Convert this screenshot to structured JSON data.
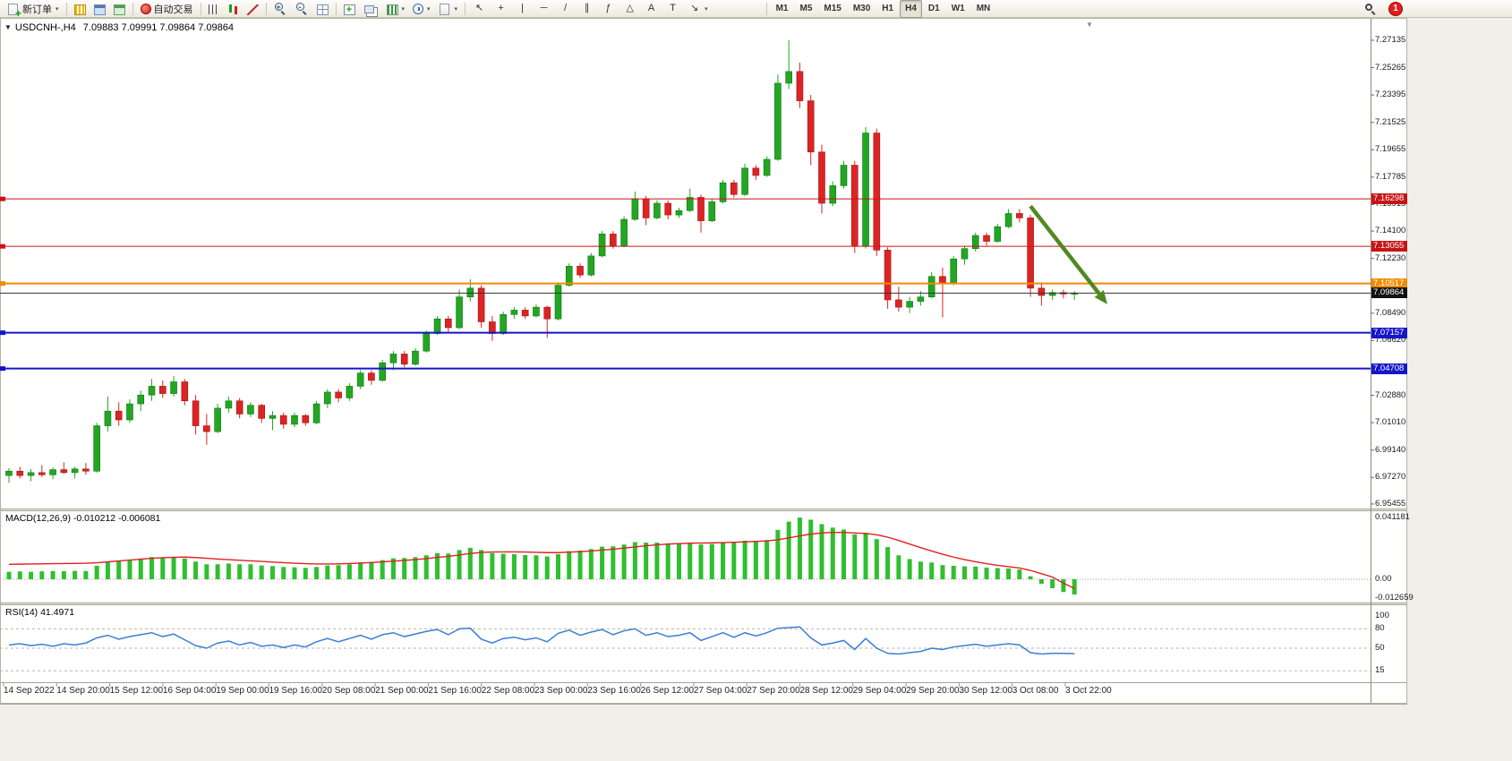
{
  "window": {
    "notification_count": "1"
  },
  "toolbar": {
    "groups": [
      {
        "items": [
          {
            "name": "new-order-button",
            "icon": "neworder",
            "label": "新订单",
            "caret": true
          }
        ]
      },
      {
        "items": [
          {
            "name": "market-watch-button",
            "icon": "marketwatch"
          },
          {
            "name": "data-window-button",
            "icon": "datawindow"
          },
          {
            "name": "navigator-button",
            "icon": "navigator"
          }
        ]
      },
      {
        "items": [
          {
            "name": "auto-trading-button",
            "icon": "autotrade",
            "label": "自动交易"
          }
        ]
      },
      {
        "items": [
          {
            "name": "bar-chart-button",
            "icon": "bars"
          },
          {
            "name": "candlestick-chart-button",
            "icon": "candles"
          },
          {
            "name": "line-chart-button",
            "icon": "linechart"
          }
        ]
      },
      {
        "items": [
          {
            "name": "zoom-in-button",
            "icon": "zoomin"
          },
          {
            "name": "zoom-out-button",
            "icon": "zoomout"
          },
          {
            "name": "tile-windows-button",
            "icon": "tile"
          }
        ]
      },
      {
        "items": [
          {
            "name": "indicators-button",
            "icon": "indicators"
          },
          {
            "name": "arrange-windows-button",
            "icon": "arrange"
          },
          {
            "name": "new-chart-button",
            "icon": "newchart",
            "caret": true
          },
          {
            "name": "period-selector-button",
            "icon": "clock",
            "caret": true
          },
          {
            "name": "templates-button",
            "icon": "template",
            "caret": true
          }
        ]
      },
      {
        "items": [
          {
            "name": "cursor-button",
            "glyph": "↖"
          },
          {
            "name": "crosshair-button",
            "glyph": "+"
          },
          {
            "name": "vertical-line-button",
            "glyph": "|"
          },
          {
            "name": "horizontal-line-button",
            "glyph": "─"
          },
          {
            "name": "trendline-button",
            "glyph": "/"
          },
          {
            "name": "channel-button",
            "glyph": "∥"
          },
          {
            "name": "fibonacci-button",
            "glyph": "ƒ"
          },
          {
            "name": "shapes-button",
            "glyph": "△"
          },
          {
            "name": "text-button",
            "glyph": "A"
          },
          {
            "name": "text-label-button",
            "glyph": "T"
          },
          {
            "name": "arrow-objects-button",
            "glyph": "↘",
            "caret": true
          }
        ]
      },
      {
        "spacer": 56
      },
      {
        "items": [
          {
            "name": "timeframe-m1-button",
            "tf": "M1"
          },
          {
            "name": "timeframe-m5-button",
            "tf": "M5"
          },
          {
            "name": "timeframe-m15-button",
            "tf": "M15"
          },
          {
            "name": "timeframe-m30-button",
            "tf": "M30"
          },
          {
            "name": "timeframe-h1-button",
            "tf": "H1"
          },
          {
            "name": "timeframe-h4-button",
            "tf": "H4",
            "active": true
          },
          {
            "name": "timeframe-d1-button",
            "tf": "D1"
          },
          {
            "name": "timeframe-w1-button",
            "tf": "W1"
          },
          {
            "name": "timeframe-mn-button",
            "tf": "MN"
          }
        ]
      }
    ],
    "right": [
      {
        "name": "search-button",
        "icon": "search"
      },
      {
        "name": "notification-badge",
        "badge": true
      }
    ]
  },
  "chart": {
    "collapse_glyph": "▼",
    "header_title": "USDCNH-,H4",
    "header_ohlc": "7.09883 7.09991 7.09864 7.09864",
    "shift_marker_glyph": "▼",
    "price_axis_labels": [
      "7.27135",
      "7.25265",
      "7.23395",
      "7.21525",
      "7.19655",
      "7.17785",
      "7.15915",
      "7.14100",
      "7.12230",
      "7.08490",
      "7.06620",
      "7.02880",
      "7.01010",
      "6.99140",
      "6.97270",
      "6.95455"
    ],
    "time_labels": [
      "14 Sep 2022",
      "14 Sep 20:00",
      "15 Sep 12:00",
      "16 Sep 04:00",
      "19 Sep 00:00",
      "19 Sep 16:00",
      "20 Sep 08:00",
      "21 Sep 00:00",
      "21 Sep 16:00",
      "22 Sep 08:00",
      "23 Sep 00:00",
      "23 Sep 16:00",
      "26 Sep 12:00",
      "27 Sep 04:00",
      "27 Sep 20:00",
      "28 Sep 12:00",
      "29 Sep 04:00",
      "29 Sep 20:00",
      "30 Sep 12:00",
      "3 Oct 08:00",
      "3 Oct 22:00"
    ]
  },
  "macd": {
    "label": "MACD(12,26,9) -0.010212 -0.006081",
    "axis_labels": [
      "0.041181",
      "0.00",
      "-0.012659"
    ]
  },
  "rsi": {
    "label": "RSI(14) 41.4971",
    "axis_labels": [
      "100",
      "80",
      "50",
      "15"
    ]
  },
  "chart_data": {
    "type": "candlestick",
    "symbol": "USDCNH",
    "timeframe": "H4",
    "ohlc_header": {
      "open": "7.09883",
      "high": "7.09991",
      "low": "7.09864",
      "close": "7.09864"
    },
    "colors": {
      "up": "#23a623",
      "down": "#dd2424",
      "up_edge": "#0e7a0e",
      "down_edge": "#9c1414",
      "macd_hist": "#2fbf2f",
      "macd_signal": "#e02020",
      "rsi_line": "#3a7fd5",
      "arrow": "#4f8a1f",
      "level_red": "#c81414",
      "level_orange": "#f08c00",
      "level_blue": "#1616c8",
      "current": "#111111"
    },
    "key_levels": [
      {
        "label": "7.16298",
        "price": 7.16298,
        "color": "#c81414",
        "width": 1
      },
      {
        "label": "7.13055",
        "price": 7.13055,
        "color": "#c81414",
        "width": 1
      },
      {
        "label": "7.10517",
        "price": 7.10517,
        "color": "#f08c00",
        "width": 2
      },
      {
        "label": "7.07157",
        "price": 7.07157,
        "color": "#1616c8",
        "width": 2
      },
      {
        "label": "7.04708",
        "price": 7.04708,
        "color": "#1616c8",
        "width": 2
      }
    ],
    "current_price": 7.09864,
    "current_price_label": "7.09864",
    "rsi_levels": [
      80,
      50,
      15
    ],
    "annotations": [
      {
        "type": "arrow",
        "from_index": 93,
        "from_price": 7.158,
        "to_index": 100,
        "to_price": 7.091
      }
    ],
    "candles": [
      [
        6.974,
        6.979,
        6.969,
        6.977
      ],
      [
        6.977,
        6.98,
        6.972,
        6.974
      ],
      [
        6.974,
        6.9785,
        6.97,
        6.976
      ],
      [
        6.976,
        6.981,
        6.973,
        6.9745
      ],
      [
        6.9745,
        6.9795,
        6.9715,
        6.978
      ],
      [
        6.978,
        6.983,
        6.975,
        6.976
      ],
      [
        6.976,
        6.98,
        6.972,
        6.9785
      ],
      [
        6.9785,
        6.9825,
        6.9745,
        6.977
      ],
      [
        6.977,
        7.01,
        6.976,
        7.008
      ],
      [
        7.008,
        7.028,
        7.004,
        7.018
      ],
      [
        7.018,
        7.024,
        7.008,
        7.012
      ],
      [
        7.012,
        7.026,
        7.01,
        7.023
      ],
      [
        7.023,
        7.032,
        7.018,
        7.029
      ],
      [
        7.029,
        7.04,
        7.025,
        7.035
      ],
      [
        7.035,
        7.039,
        7.027,
        7.03
      ],
      [
        7.03,
        7.042,
        7.028,
        7.038
      ],
      [
        7.038,
        7.04,
        7.022,
        7.025
      ],
      [
        7.025,
        7.029,
        7.002,
        7.008
      ],
      [
        7.008,
        7.016,
        6.995,
        7.004
      ],
      [
        7.004,
        7.023,
        7.003,
        7.02
      ],
      [
        7.02,
        7.028,
        7.017,
        7.025
      ],
      [
        7.025,
        7.027,
        7.013,
        7.016
      ],
      [
        7.016,
        7.024,
        7.014,
        7.022
      ],
      [
        7.022,
        7.023,
        7.01,
        7.013
      ],
      [
        7.013,
        7.018,
        7.005,
        7.015
      ],
      [
        7.015,
        7.017,
        7.006,
        7.009
      ],
      [
        7.009,
        7.017,
        7.007,
        7.015
      ],
      [
        7.015,
        7.016,
        7.008,
        7.01
      ],
      [
        7.01,
        7.025,
        7.009,
        7.023
      ],
      [
        7.023,
        7.033,
        7.02,
        7.031
      ],
      [
        7.031,
        7.033,
        7.024,
        7.027
      ],
      [
        7.027,
        7.037,
        7.025,
        7.035
      ],
      [
        7.035,
        7.046,
        7.033,
        7.044
      ],
      [
        7.044,
        7.046,
        7.036,
        7.039
      ],
      [
        7.039,
        7.053,
        7.038,
        7.051
      ],
      [
        7.051,
        7.059,
        7.046,
        7.057
      ],
      [
        7.057,
        7.059,
        7.048,
        7.05
      ],
      [
        7.05,
        7.061,
        7.049,
        7.059
      ],
      [
        7.059,
        7.073,
        7.058,
        7.071
      ],
      [
        7.071,
        7.083,
        7.07,
        7.081
      ],
      [
        7.081,
        7.083,
        7.072,
        7.075
      ],
      [
        7.075,
        7.101,
        7.074,
        7.096
      ],
      [
        7.096,
        7.108,
        7.093,
        7.102
      ],
      [
        7.102,
        7.104,
        7.075,
        7.079
      ],
      [
        7.079,
        7.083,
        7.066,
        7.071
      ],
      [
        7.071,
        7.086,
        7.07,
        7.084
      ],
      [
        7.084,
        7.089,
        7.081,
        7.087
      ],
      [
        7.087,
        7.089,
        7.081,
        7.083
      ],
      [
        7.083,
        7.091,
        7.082,
        7.089
      ],
      [
        7.089,
        7.09,
        7.068,
        7.081
      ],
      [
        7.081,
        7.106,
        7.08,
        7.104
      ],
      [
        7.104,
        7.119,
        7.103,
        7.117
      ],
      [
        7.117,
        7.119,
        7.109,
        7.111
      ],
      [
        7.111,
        7.126,
        7.11,
        7.124
      ],
      [
        7.124,
        7.141,
        7.123,
        7.139
      ],
      [
        7.139,
        7.141,
        7.129,
        7.131
      ],
      [
        7.131,
        7.151,
        7.13,
        7.149
      ],
      [
        7.149,
        7.168,
        7.148,
        7.163
      ],
      [
        7.163,
        7.165,
        7.145,
        7.15
      ],
      [
        7.15,
        7.162,
        7.149,
        7.16
      ],
      [
        7.16,
        7.162,
        7.149,
        7.152
      ],
      [
        7.152,
        7.157,
        7.15,
        7.155
      ],
      [
        7.155,
        7.17,
        7.154,
        7.164
      ],
      [
        7.164,
        7.166,
        7.14,
        7.148
      ],
      [
        7.148,
        7.163,
        7.147,
        7.161
      ],
      [
        7.161,
        7.176,
        7.16,
        7.174
      ],
      [
        7.174,
        7.176,
        7.164,
        7.166
      ],
      [
        7.166,
        7.187,
        7.165,
        7.184
      ],
      [
        7.184,
        7.186,
        7.176,
        7.179
      ],
      [
        7.179,
        7.192,
        7.178,
        7.19
      ],
      [
        7.19,
        7.248,
        7.189,
        7.242
      ],
      [
        7.242,
        7.2714,
        7.238,
        7.25
      ],
      [
        7.25,
        7.256,
        7.225,
        7.23
      ],
      [
        7.23,
        7.234,
        7.186,
        7.195
      ],
      [
        7.195,
        7.2,
        7.153,
        7.16
      ],
      [
        7.16,
        7.175,
        7.158,
        7.172
      ],
      [
        7.172,
        7.189,
        7.17,
        7.186
      ],
      [
        7.186,
        7.189,
        7.126,
        7.131
      ],
      [
        7.131,
        7.212,
        7.129,
        7.208
      ],
      [
        7.208,
        7.211,
        7.124,
        7.128
      ],
      [
        7.128,
        7.13,
        7.088,
        7.094
      ],
      [
        7.094,
        7.103,
        7.086,
        7.089
      ],
      [
        7.089,
        7.096,
        7.085,
        7.093
      ],
      [
        7.093,
        7.1,
        7.09,
        7.096
      ],
      [
        7.096,
        7.113,
        7.095,
        7.11
      ],
      [
        7.11,
        7.116,
        7.082,
        7.105
      ],
      [
        7.105,
        7.124,
        7.104,
        7.122
      ],
      [
        7.122,
        7.131,
        7.118,
        7.129
      ],
      [
        7.129,
        7.14,
        7.127,
        7.138
      ],
      [
        7.138,
        7.14,
        7.131,
        7.134
      ],
      [
        7.134,
        7.146,
        7.133,
        7.144
      ],
      [
        7.144,
        7.156,
        7.143,
        7.153
      ],
      [
        7.153,
        7.156,
        7.147,
        7.15
      ],
      [
        7.15,
        7.152,
        7.096,
        7.102
      ],
      [
        7.102,
        7.106,
        7.09,
        7.097
      ],
      [
        7.097,
        7.101,
        7.094,
        7.099
      ],
      [
        7.099,
        7.101,
        7.095,
        7.098
      ],
      [
        7.098,
        7.1,
        7.094,
        7.0986
      ]
    ],
    "macd": {
      "histogram": [
        0.005,
        0.0052,
        0.005,
        0.0053,
        0.0055,
        0.0054,
        0.0056,
        0.0055,
        0.009,
        0.0115,
        0.012,
        0.0128,
        0.0138,
        0.0148,
        0.0145,
        0.0148,
        0.0138,
        0.0118,
        0.01,
        0.01,
        0.0105,
        0.01,
        0.01,
        0.0092,
        0.0088,
        0.0082,
        0.008,
        0.0076,
        0.0082,
        0.0092,
        0.0094,
        0.01,
        0.0112,
        0.0115,
        0.0128,
        0.014,
        0.0142,
        0.0148,
        0.016,
        0.0175,
        0.0172,
        0.0195,
        0.021,
        0.0195,
        0.0175,
        0.017,
        0.0168,
        0.0162,
        0.016,
        0.0152,
        0.0168,
        0.0188,
        0.0192,
        0.0202,
        0.0218,
        0.022,
        0.0232,
        0.0248,
        0.0245,
        0.0245,
        0.024,
        0.0238,
        0.0242,
        0.0232,
        0.0235,
        0.0248,
        0.0246,
        0.0258,
        0.0255,
        0.0262,
        0.033,
        0.0385,
        0.0412,
        0.0398,
        0.0368,
        0.0345,
        0.0332,
        0.03,
        0.031,
        0.0268,
        0.0215,
        0.016,
        0.0135,
        0.0118,
        0.0112,
        0.0095,
        0.009,
        0.0086,
        0.0085,
        0.0078,
        0.0075,
        0.0072,
        0.0065,
        0.002,
        -0.003,
        -0.006,
        -0.0085,
        -0.0102
      ],
      "signal": [
        0.01,
        0.0101,
        0.0102,
        0.0103,
        0.0104,
        0.0105,
        0.0106,
        0.0107,
        0.011,
        0.0116,
        0.0122,
        0.0128,
        0.0134,
        0.014,
        0.0144,
        0.0147,
        0.0148,
        0.0145,
        0.014,
        0.0135,
        0.0131,
        0.0127,
        0.0123,
        0.0119,
        0.0115,
        0.0111,
        0.0107,
        0.0104,
        0.0102,
        0.0102,
        0.0103,
        0.0105,
        0.0108,
        0.0112,
        0.0116,
        0.0121,
        0.0126,
        0.0131,
        0.0138,
        0.0146,
        0.0153,
        0.0162,
        0.0172,
        0.0179,
        0.0182,
        0.0183,
        0.0183,
        0.0182,
        0.018,
        0.0178,
        0.0178,
        0.0181,
        0.0184,
        0.0189,
        0.0195,
        0.0201,
        0.0208,
        0.0216,
        0.0224,
        0.023,
        0.0235,
        0.0238,
        0.0241,
        0.0242,
        0.0243,
        0.0245,
        0.0247,
        0.025,
        0.0253,
        0.0256,
        0.0264,
        0.0276,
        0.029,
        0.0302,
        0.0309,
        0.0313,
        0.0313,
        0.0309,
        0.0306,
        0.0297,
        0.0281,
        0.0259,
        0.0235,
        0.0211,
        0.0189,
        0.0167,
        0.0148,
        0.0131,
        0.0117,
        0.0104,
        0.0093,
        0.0084,
        0.0075,
        0.0059,
        0.0037,
        0.0015,
        -0.0026,
        -0.0061
      ],
      "final_values": {
        "macd": "-0.010212",
        "signal": "-0.006081"
      }
    },
    "rsi": {
      "values": [
        55,
        57,
        54,
        56,
        53,
        57,
        55,
        58,
        66,
        70,
        64,
        68,
        71,
        74,
        68,
        72,
        63,
        54,
        50,
        58,
        61,
        55,
        59,
        53,
        55,
        51,
        55,
        52,
        60,
        65,
        60,
        65,
        70,
        64,
        71,
        74,
        68,
        72,
        76,
        79,
        71,
        80,
        81,
        64,
        58,
        65,
        67,
        63,
        66,
        60,
        73,
        78,
        70,
        75,
        79,
        71,
        77,
        80,
        70,
        74,
        68,
        70,
        74,
        62,
        68,
        74,
        67,
        74,
        69,
        74,
        81,
        82,
        83,
        66,
        55,
        58,
        62,
        48,
        65,
        50,
        42,
        41,
        43,
        45,
        50,
        48,
        52,
        54,
        56,
        53,
        55,
        57,
        55,
        43,
        41,
        42,
        42,
        41.5
      ],
      "final_value": "41.4971"
    }
  }
}
